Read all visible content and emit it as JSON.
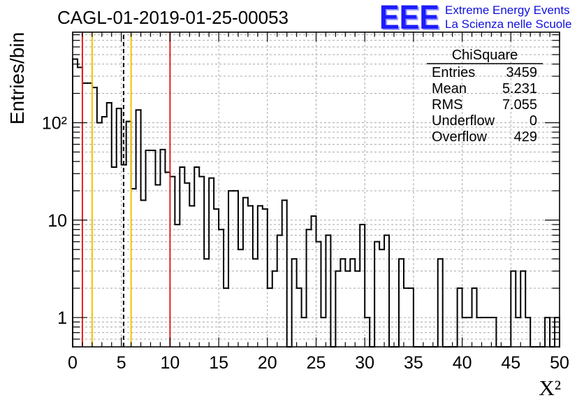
{
  "chart_data": {
    "type": "bar",
    "title": "CAGL-01-2019-01-25-00053",
    "xlabel": "X²",
    "ylabel": "Entries/bin",
    "xlim": [
      0,
      50
    ],
    "ylim": [
      0.5,
      850
    ],
    "yscale": "log",
    "grid": true,
    "bin_width": 0.5,
    "values": [
      450,
      370,
      255,
      255,
      230,
      100,
      115,
      160,
      35,
      140,
      37,
      103,
      21,
      135,
      16,
      52,
      52,
      23,
      53,
      31,
      28,
      9,
      35,
      24,
      14,
      35,
      28,
      4,
      27,
      13,
      8,
      2,
      20,
      20,
      5,
      17,
      14,
      4,
      14,
      13,
      2,
      3,
      7,
      16,
      0,
      4,
      2,
      1,
      8,
      11,
      6,
      1,
      7,
      0,
      3,
      4,
      3,
      4,
      3,
      9,
      1,
      0,
      6,
      5,
      7,
      0,
      0,
      4,
      2,
      2,
      0,
      0,
      0,
      0,
      0,
      4,
      0,
      0,
      0,
      2,
      1,
      1,
      2,
      1,
      1,
      1,
      1,
      0,
      0,
      0,
      3,
      1,
      3,
      1,
      0,
      0,
      0,
      1,
      0,
      1
    ],
    "x_ticks": [
      0,
      5,
      10,
      15,
      20,
      25,
      30,
      35,
      40,
      45,
      50
    ],
    "y_ticks": [
      {
        "value": 1,
        "label": "1"
      },
      {
        "value": 10,
        "label": "10"
      },
      {
        "value": 100,
        "label": "10²"
      }
    ],
    "markers": [
      {
        "x": 1,
        "color": "#e3211c",
        "dashed": false
      },
      {
        "x": 2,
        "color": "#f2c300",
        "dashed": false
      },
      {
        "x": 5.231,
        "color": "#000000",
        "dashed": true
      },
      {
        "x": 6,
        "color": "#f2c300",
        "dashed": false
      },
      {
        "x": 10,
        "color": "#e3211c",
        "dashed": false
      }
    ]
  },
  "stats": {
    "name": "ChiSquare",
    "rows": [
      {
        "label": "Entries",
        "value": "3459"
      },
      {
        "label": "Mean",
        "value": "5.231"
      },
      {
        "label": "RMS",
        "value": "7.055"
      },
      {
        "label": "Underflow",
        "value": "0"
      },
      {
        "label": "Overflow",
        "value": "429"
      }
    ]
  },
  "logo": {
    "mark": "EEE",
    "line1": "Extreme Energy Events",
    "line2": "La Scienza nelle Scuole",
    "mark_color": "#1a1aff",
    "text_color": "#1010e0"
  }
}
